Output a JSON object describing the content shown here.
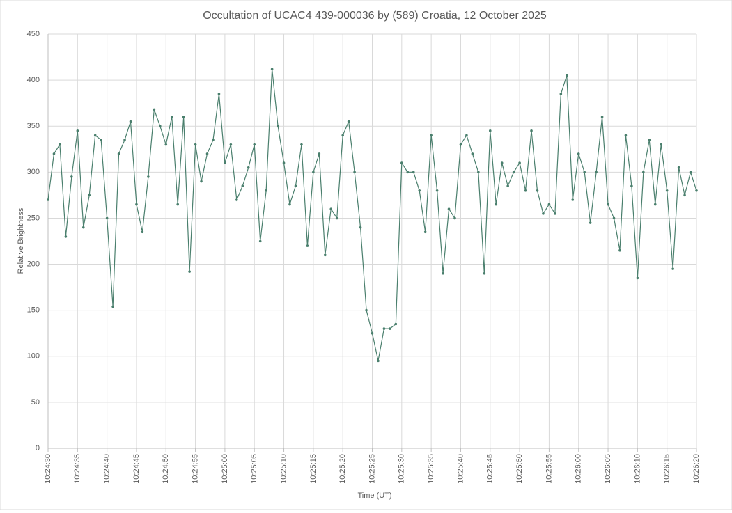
{
  "chart_data": {
    "type": "line",
    "title": "Occultation of UCAC4 439-000036 by (589) Croatia, 12 October 2025",
    "x_label": "Time (UT)",
    "y_label": "Relative Brightness",
    "x": [
      "10:24:30",
      "10:24:31",
      "10:24:32",
      "10:24:33",
      "10:24:34",
      "10:24:35",
      "10:24:36",
      "10:24:37",
      "10:24:38",
      "10:24:39",
      "10:24:40",
      "10:24:41",
      "10:24:42",
      "10:24:43",
      "10:24:44",
      "10:24:45",
      "10:24:46",
      "10:24:47",
      "10:24:48",
      "10:24:49",
      "10:24:50",
      "10:24:51",
      "10:24:52",
      "10:24:53",
      "10:24:54",
      "10:24:55",
      "10:24:56",
      "10:24:57",
      "10:24:58",
      "10:24:59",
      "10:25:00",
      "10:25:01",
      "10:25:02",
      "10:25:03",
      "10:25:04",
      "10:25:05",
      "10:25:06",
      "10:25:07",
      "10:25:08",
      "10:25:09",
      "10:25:10",
      "10:25:11",
      "10:25:12",
      "10:25:13",
      "10:25:14",
      "10:25:15",
      "10:25:16",
      "10:25:17",
      "10:25:18",
      "10:25:19",
      "10:25:20",
      "10:25:21",
      "10:25:22",
      "10:25:23",
      "10:25:24",
      "10:25:25",
      "10:25:26",
      "10:25:27",
      "10:25:28",
      "10:25:29",
      "10:25:30",
      "10:25:31",
      "10:25:32",
      "10:25:33",
      "10:25:34",
      "10:25:35",
      "10:25:36",
      "10:25:37",
      "10:25:38",
      "10:25:39",
      "10:25:40",
      "10:25:41",
      "10:25:42",
      "10:25:43",
      "10:25:44",
      "10:25:45",
      "10:25:46",
      "10:25:47",
      "10:25:48",
      "10:25:49",
      "10:25:50",
      "10:25:51",
      "10:25:52",
      "10:25:53",
      "10:25:54",
      "10:25:55",
      "10:25:56",
      "10:25:57",
      "10:25:58",
      "10:25:59",
      "10:26:00",
      "10:26:01",
      "10:26:02",
      "10:26:03",
      "10:26:04",
      "10:26:05",
      "10:26:06",
      "10:26:07",
      "10:26:08",
      "10:26:09",
      "10:26:10",
      "10:26:11",
      "10:26:12",
      "10:26:13",
      "10:26:14",
      "10:26:15",
      "10:26:16",
      "10:26:17",
      "10:26:18",
      "10:26:19",
      "10:26:20"
    ],
    "values": [
      270,
      320,
      330,
      230,
      295,
      345,
      240,
      275,
      340,
      335,
      250,
      154,
      320,
      335,
      355,
      265,
      235,
      295,
      368,
      350,
      330,
      360,
      265,
      360,
      192,
      330,
      290,
      320,
      335,
      385,
      310,
      330,
      270,
      285,
      305,
      330,
      225,
      280,
      412,
      350,
      310,
      265,
      285,
      330,
      220,
      300,
      320,
      210,
      260,
      250,
      340,
      355,
      300,
      240,
      150,
      125,
      95,
      130,
      130,
      135,
      310,
      300,
      300,
      280,
      235,
      340,
      280,
      190,
      260,
      250,
      330,
      340,
      320,
      300,
      190,
      345,
      265,
      310,
      285,
      300,
      310,
      280,
      345,
      280,
      255,
      265,
      255,
      385,
      405,
      270,
      320,
      300,
      245,
      300,
      360,
      265,
      250,
      215,
      340,
      285,
      185,
      300,
      335,
      265,
      330,
      280,
      195,
      305,
      275,
      300,
      280
    ],
    "color": "#4a7f6d",
    "marker": true,
    "ylim": [
      0,
      450
    ],
    "yticks": [
      0,
      50,
      100,
      150,
      200,
      250,
      300,
      350,
      400,
      450
    ],
    "xtick_every": 5,
    "grid": true
  }
}
